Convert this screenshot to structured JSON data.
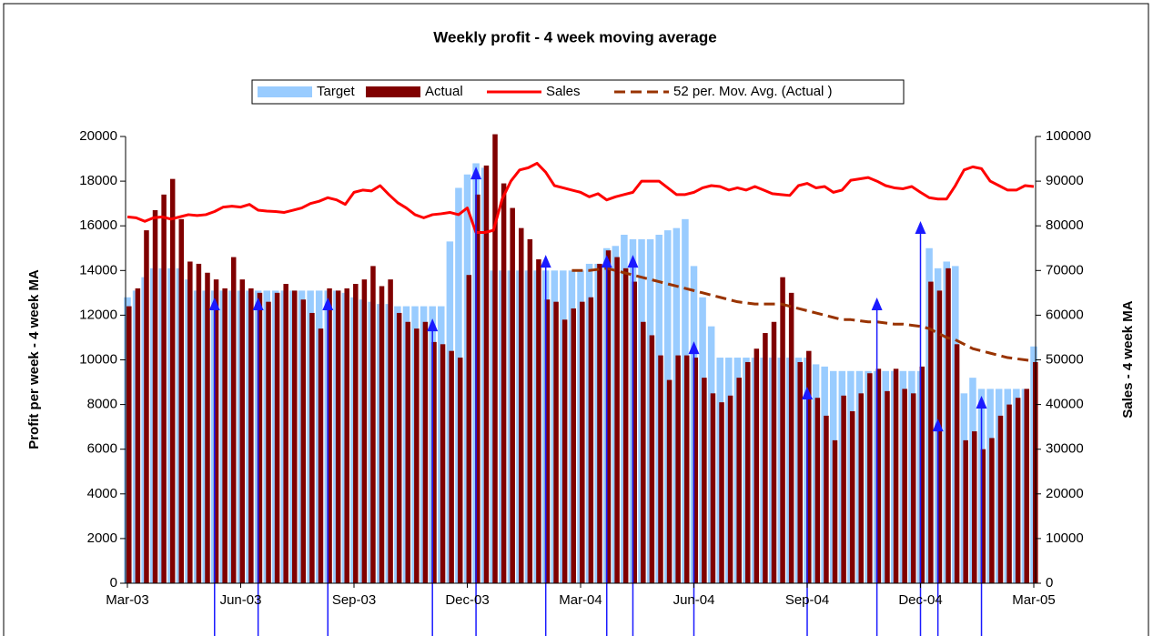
{
  "chart_data": {
    "type": "bar",
    "title": "Weekly profit - 4 week moving average",
    "y_label": "Profit per week - 4 week MA",
    "y2_label": "Sales - 4 week MA",
    "categories": [
      "Mar-03",
      null,
      null,
      null,
      null,
      null,
      null,
      null,
      null,
      null,
      null,
      null,
      null,
      "Jun-03",
      null,
      null,
      null,
      null,
      null,
      null,
      null,
      null,
      null,
      null,
      null,
      null,
      "Sep-03",
      null,
      null,
      null,
      null,
      null,
      null,
      null,
      null,
      null,
      null,
      null,
      null,
      "Dec-03",
      null,
      null,
      null,
      null,
      null,
      null,
      null,
      null,
      null,
      null,
      null,
      null,
      "Mar-04",
      null,
      null,
      null,
      null,
      null,
      null,
      null,
      null,
      null,
      null,
      null,
      null,
      "Jun-04",
      null,
      null,
      null,
      null,
      null,
      null,
      null,
      null,
      null,
      null,
      null,
      null,
      "Sep-04",
      null,
      null,
      null,
      null,
      null,
      null,
      null,
      null,
      null,
      null,
      null,
      null,
      "Dec-04",
      null,
      null,
      null,
      null,
      null,
      null,
      null,
      null,
      null,
      null,
      null,
      null,
      "Mar-05"
    ],
    "ylim": [
      0,
      20000
    ],
    "yticks": [
      0,
      2000,
      4000,
      6000,
      8000,
      10000,
      12000,
      14000,
      16000,
      18000,
      20000
    ],
    "y2lim": [
      0,
      100000
    ],
    "y2ticks": [
      0,
      10000,
      20000,
      30000,
      40000,
      50000,
      60000,
      70000,
      80000,
      90000,
      100000
    ],
    "grid": false,
    "legend": "top",
    "series": [
      {
        "name": "Target",
        "type": "bar",
        "color": "#99ccff",
        "values": [
          12800,
          13100,
          13700,
          14100,
          14100,
          14100,
          14100,
          13600,
          13100,
          13100,
          13100,
          13100,
          13100,
          13100,
          13100,
          13100,
          13100,
          13100,
          13100,
          13100,
          13100,
          13100,
          13100,
          13100,
          13100,
          13000,
          12800,
          12700,
          12600,
          12500,
          12500,
          12400,
          12400,
          12400,
          12400,
          12400,
          12400,
          15300,
          17700,
          18300,
          18800,
          18600,
          14000,
          14000,
          14000,
          14000,
          14000,
          14000,
          14000,
          14000,
          14000,
          14000,
          14000,
          14300,
          14300,
          15000,
          15100,
          15600,
          15400,
          15400,
          15400,
          15600,
          15800,
          15900,
          16300,
          14200,
          12800,
          11500,
          10100,
          10100,
          10100,
          10100,
          10100,
          10100,
          10100,
          10100,
          10100,
          10100,
          10100,
          9800,
          9700,
          9500,
          9500,
          9500,
          9500,
          9500,
          9500,
          9500,
          9500,
          9500,
          9500,
          9500,
          15000,
          14100,
          14400,
          14200,
          8500,
          9200,
          8700,
          8700,
          8700,
          8700,
          8700,
          8700,
          10600
        ]
      },
      {
        "name": "Actual",
        "type": "bar",
        "color": "#800000",
        "values": [
          12400,
          13200,
          15800,
          16700,
          17400,
          18100,
          16300,
          14400,
          14300,
          13900,
          13600,
          13200,
          14600,
          13600,
          13200,
          13000,
          12600,
          13000,
          13400,
          13100,
          12700,
          12100,
          11400,
          13200,
          13100,
          13200,
          13400,
          13600,
          14200,
          13300,
          13600,
          12100,
          11700,
          11400,
          11700,
          10800,
          10700,
          10400,
          10100,
          13800,
          17400,
          18700,
          20100,
          17900,
          16800,
          15900,
          15400,
          14500,
          12700,
          12600,
          11800,
          12300,
          12600,
          12800,
          14300,
          14900,
          14600,
          14100,
          13500,
          11700,
          11100,
          10200,
          9100,
          10200,
          10200,
          10100,
          9200,
          8500,
          8100,
          8400,
          9200,
          9900,
          10500,
          11200,
          11700,
          13700,
          13000,
          9900,
          10400,
          8300,
          7500,
          6400,
          8400,
          7700,
          8500,
          9400,
          9600,
          8600,
          9600,
          8700,
          8500,
          9700,
          13500,
          13100,
          14100,
          10700,
          6400,
          6800,
          6000,
          6500,
          7500,
          8000,
          8300,
          8700,
          9900
        ]
      },
      {
        "name": "Sales",
        "type": "line",
        "axis": "y2",
        "color": "#ff0000",
        "values": [
          82000,
          81800,
          81000,
          81800,
          82000,
          81500,
          82000,
          82500,
          82300,
          82500,
          83200,
          84200,
          84400,
          84200,
          84800,
          83500,
          83300,
          83200,
          83000,
          83500,
          84000,
          85000,
          85500,
          86300,
          85800,
          84800,
          87500,
          88000,
          87800,
          89000,
          87000,
          85200,
          84000,
          82500,
          81800,
          82500,
          82700,
          83000,
          82500,
          84000,
          78500,
          78500,
          79000,
          86000,
          90000,
          92500,
          93000,
          94000,
          92000,
          89000,
          88500,
          88000,
          87500,
          86500,
          87200,
          85800,
          86500,
          87000,
          87500,
          90000,
          90000,
          90000,
          88500,
          87000,
          87000,
          87500,
          88500,
          89000,
          88800,
          88000,
          88500,
          88000,
          88800,
          88000,
          87200,
          87000,
          86800,
          89000,
          89500,
          88500,
          88800,
          87500,
          88000,
          90200,
          90500,
          90800,
          90000,
          89000,
          88500,
          88300,
          88800,
          87500,
          86300,
          86000,
          86000,
          89000,
          92500,
          93200,
          92800,
          90000,
          89000,
          88000,
          88000,
          89000,
          88800
        ]
      },
      {
        "name": "52 per. Mov. Avg. (Actual )",
        "type": "line",
        "dashed": true,
        "color": "#993300",
        "values": [
          null,
          null,
          null,
          null,
          null,
          null,
          null,
          null,
          null,
          null,
          null,
          null,
          null,
          null,
          null,
          null,
          null,
          null,
          null,
          null,
          null,
          null,
          null,
          null,
          null,
          null,
          null,
          null,
          null,
          null,
          null,
          null,
          null,
          null,
          null,
          null,
          null,
          null,
          null,
          null,
          null,
          null,
          null,
          null,
          null,
          null,
          null,
          null,
          null,
          null,
          null,
          14000,
          14000,
          14000,
          14050,
          14100,
          14000,
          13900,
          13800,
          13700,
          13600,
          13500,
          13400,
          13300,
          13200,
          13100,
          13000,
          12900,
          12800,
          12700,
          12600,
          12550,
          12500,
          12500,
          12500,
          12500,
          12400,
          12300,
          12200,
          12100,
          12000,
          11900,
          11800,
          11800,
          11750,
          11700,
          11700,
          11650,
          11600,
          11600,
          11550,
          11500,
          11400,
          11200,
          11000,
          10900,
          10700,
          10500,
          10400,
          10300,
          10200,
          10100,
          10050,
          10000,
          9950
        ]
      }
    ],
    "arrows": [
      {
        "x": 10,
        "y": 12790
      },
      {
        "x": 15,
        "y": 12790
      },
      {
        "x": 23,
        "y": 12790
      },
      {
        "x": 35,
        "y": 11850
      },
      {
        "x": 40,
        "y": 18650
      },
      {
        "x": 48,
        "y": 14700
      },
      {
        "x": 55,
        "y": 14700
      },
      {
        "x": 58,
        "y": 14700
      },
      {
        "x": 65,
        "y": 10830
      },
      {
        "x": 78,
        "y": 8800
      },
      {
        "x": 86,
        "y": 12790
      },
      {
        "x": 91,
        "y": 16210
      },
      {
        "x": 93,
        "y": 7370
      },
      {
        "x": 98,
        "y": 8390
      }
    ],
    "arrow_color": "#1a1aff"
  }
}
